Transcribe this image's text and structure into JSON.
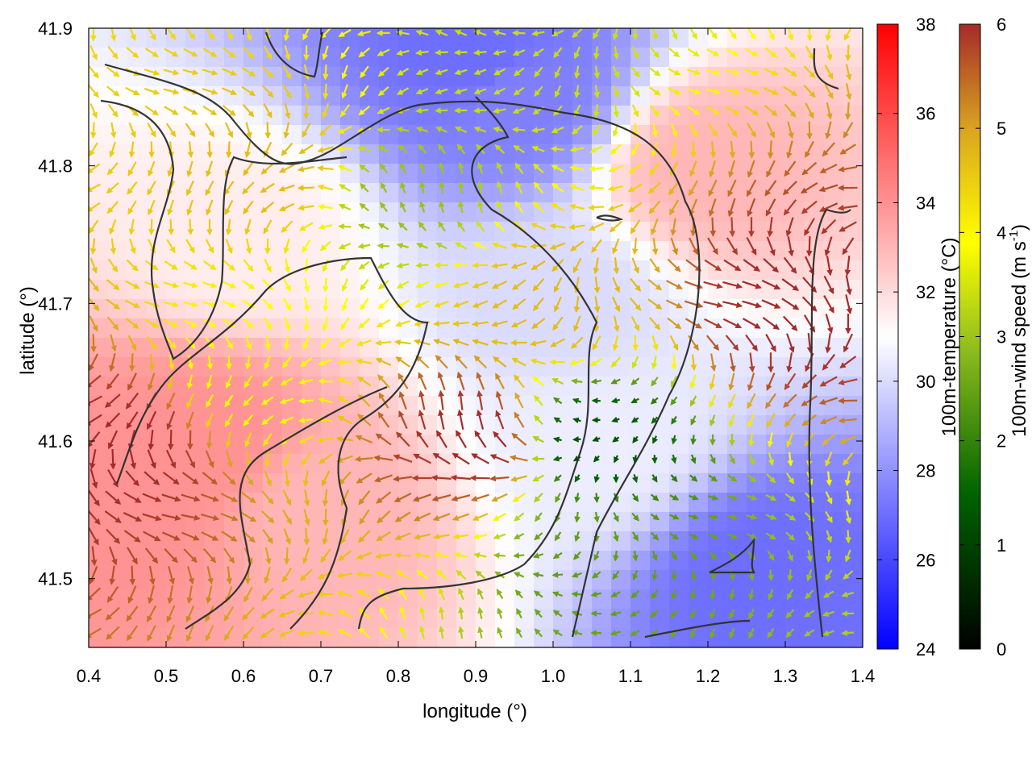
{
  "chart_data": {
    "type": "heatmap",
    "title": "",
    "xlabel": "longitude (°)",
    "ylabel": "latitude (°)",
    "xlim": [
      0.4,
      1.4
    ],
    "ylim": [
      41.45,
      41.9
    ],
    "x_ticks": [
      "0.4",
      "0.5",
      "0.6",
      "0.7",
      "0.8",
      "0.9",
      "1.0",
      "1.1",
      "1.2",
      "1.3",
      "1.4"
    ],
    "y_ticks": [
      "41.5",
      "41.6",
      "41.7",
      "41.8",
      "41.9"
    ],
    "temperature_colorbar": {
      "label": "100m-temperature (°C)",
      "range": [
        24,
        38
      ],
      "ticks": [
        "24",
        "26",
        "28",
        "30",
        "32",
        "34",
        "36",
        "38"
      ],
      "colors": [
        "#0000ff",
        "#ffffff",
        "#ff0000"
      ]
    },
    "wind_colorbar": {
      "label": "100m-wind speed (m s",
      "label_sup": "-1",
      "label_end": ")",
      "range": [
        0,
        6
      ],
      "ticks": [
        "0",
        "1",
        "2",
        "3",
        "4",
        "5",
        "6"
      ],
      "colors": [
        "#000000",
        "#006400",
        "#8fbc1e",
        "#ffff00",
        "#daa520",
        "#a52a2a"
      ]
    },
    "temperature_field_samples": [
      {
        "lon": 0.45,
        "lat": 41.55,
        "t": 34
      },
      {
        "lon": 0.55,
        "lat": 41.6,
        "t": 34
      },
      {
        "lon": 0.7,
        "lat": 41.55,
        "t": 33
      },
      {
        "lon": 0.9,
        "lat": 41.88,
        "t": 27
      },
      {
        "lon": 0.95,
        "lat": 41.85,
        "t": 27.5
      },
      {
        "lon": 1.0,
        "lat": 41.7,
        "t": 30
      },
      {
        "lon": 1.05,
        "lat": 41.6,
        "t": 30.5
      },
      {
        "lon": 1.2,
        "lat": 41.8,
        "t": 33
      },
      {
        "lon": 1.28,
        "lat": 41.5,
        "t": 27
      },
      {
        "lon": 0.6,
        "lat": 41.75,
        "t": 31.5
      }
    ],
    "wind_field_samples": [
      {
        "lon": 0.45,
        "lat": 41.6,
        "speed": 6
      },
      {
        "lon": 0.65,
        "lat": 41.8,
        "speed": 4.5
      },
      {
        "lon": 0.8,
        "lat": 41.78,
        "speed": 2.5
      },
      {
        "lon": 0.6,
        "lat": 41.65,
        "speed": 3.5
      },
      {
        "lon": 1.05,
        "lat": 41.6,
        "speed": 1
      },
      {
        "lon": 1.05,
        "lat": 41.52,
        "speed": 2
      },
      {
        "lon": 0.9,
        "lat": 41.6,
        "speed": 6
      },
      {
        "lon": 1.3,
        "lat": 41.7,
        "speed": 6
      },
      {
        "lon": 0.95,
        "lat": 41.88,
        "speed": 3
      },
      {
        "lon": 1.0,
        "lat": 41.7,
        "speed": 4.5
      }
    ]
  }
}
